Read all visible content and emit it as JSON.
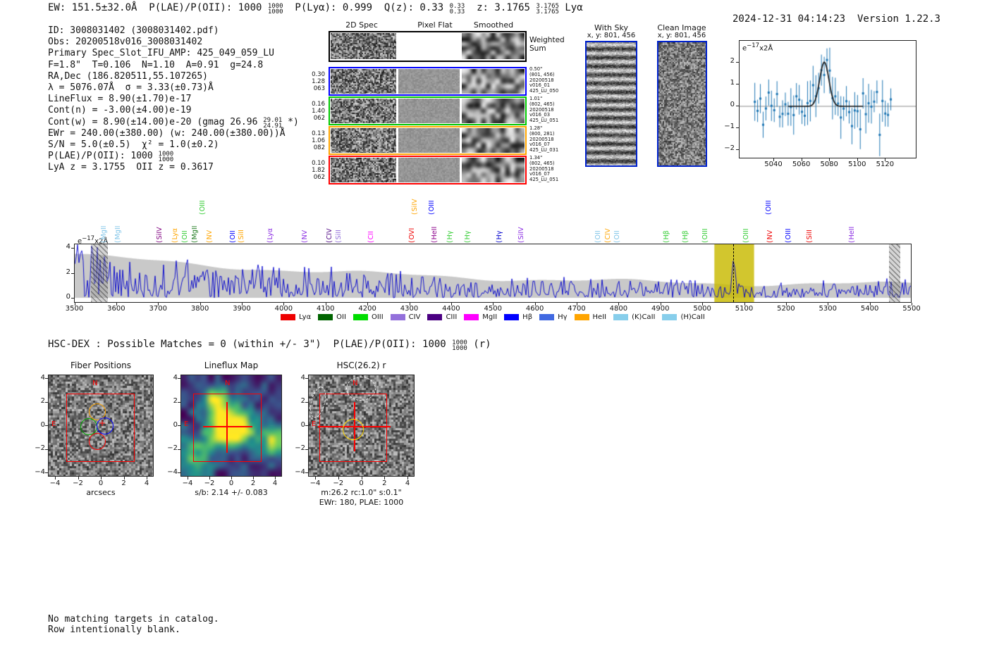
{
  "header": {
    "summary_segments": [
      {
        "t": "EW: 151.5±32.0Å  P(LAE)/P(OII): 1000 "
      },
      {
        "f": [
          "1000",
          "1000"
        ]
      },
      {
        "t": "  P(Lyα): 0.999  Q(z): 0.33 "
      },
      {
        "f": [
          "0.33",
          "0.33"
        ]
      },
      {
        "t": "  z: 3.1765 "
      },
      {
        "f": [
          "3.1765",
          "3.1765"
        ]
      },
      {
        "t": " Lyα"
      }
    ],
    "timestamp": "2024-12-31 04:14:23",
    "version": "Version 1.22.3"
  },
  "info_block": {
    "lines": [
      [
        {
          "t": "ID: 3008031402 (3008031402.pdf)"
        }
      ],
      [
        {
          "t": "Obs: 20200518v016_3008031402"
        }
      ],
      [
        {
          "t": "Primary Spec_Slot_IFU_AMP: 425_049_059_LU"
        }
      ],
      [
        {
          "t": "F=1.8\"  T=0.106  N=1.10  A=0.91  g=24.8"
        }
      ],
      [
        {
          "t": "RA,Dec (186.820511,55.107265)"
        }
      ],
      [
        {
          "t": "λ = 5076.07Å  σ = 3.33(±0.73)Å"
        }
      ],
      [
        {
          "t": "LineFlux = 8.90(±1.70)e-17"
        }
      ],
      [
        {
          "t": "Cont(n) = -3.00(±4.00)e-19"
        }
      ],
      [
        {
          "t": "Cont(w) = 8.90(±14.00)e-20 (gmag 26.96 "
        },
        {
          "f": [
            "29.01",
            "24.91"
          ]
        },
        {
          "t": " *)"
        }
      ],
      [
        {
          "t": "EWr = 240.00(±380.00) (w: 240.00(±380.00))Å"
        }
      ],
      [
        {
          "t": "S/N = 5.0(±0.5)  χ² = 1.0(±0.2)"
        }
      ],
      [
        {
          "t": "P(LAE)/P(OII): 1000 "
        },
        {
          "f": [
            "1000",
            "1000"
          ]
        }
      ],
      [
        {
          "t": "LyA z = 3.1755  OII z = 0.3617"
        }
      ]
    ]
  },
  "spec2d": {
    "col_headers": [
      "2D Spec",
      "Pixel Flat",
      "Smoothed"
    ],
    "rows": [
      {
        "border": "#000000",
        "left": [],
        "right": [
          "Weighted",
          "Sum"
        ],
        "flat": false
      },
      {
        "border": "#0000ff",
        "left": [
          "0.30",
          "1.28",
          "063"
        ],
        "right": [
          "0.50\"",
          "(801, 456)",
          "20200518",
          "v016_01",
          "425_LU_050"
        ],
        "flat": true
      },
      {
        "border": "#00c800",
        "left": [
          "0.16",
          "1.40",
          "062"
        ],
        "right": [
          "1.01\"",
          "(802, 465)",
          "20200518",
          "v016_03",
          "425_LU_051"
        ],
        "flat": true
      },
      {
        "border": "#ffa500",
        "left": [
          "0.13",
          "1.06",
          "082"
        ],
        "right": [
          "1.28\"",
          "(800, 281)",
          "20200518",
          "v016_07",
          "425_LU_031"
        ],
        "flat": true
      },
      {
        "border": "#ff0000",
        "left": [
          "0.10",
          "1.82",
          "062"
        ],
        "right": [
          "1.34\"",
          "(802, 465)",
          "20200518",
          "v016_07",
          "425_LU_051"
        ],
        "flat": true
      }
    ]
  },
  "sky_panels": {
    "border": "#0022cc",
    "with_sky": {
      "title": "With Sky",
      "coords": "x, y: 801, 456"
    },
    "clean": {
      "title": "Clean Image",
      "coords": "x, y: 801, 456"
    }
  },
  "hsc_line_segments": [
    {
      "t": "HSC-DEX : Possible Matches = 0 (within +/- 3\")  P(LAE)/P(OII): 1000 "
    },
    {
      "f": [
        "1000",
        "1000"
      ]
    },
    {
      "t": " (r)"
    }
  ],
  "footer": {
    "lines": [
      "No matching targets in catalog.",
      "Row intentionally blank."
    ]
  },
  "chart_data": [
    {
      "id": "line_fit_plot",
      "type": "scatter",
      "ylabel_note_segments": [
        {
          "t": "e"
        },
        {
          "s": "−17"
        },
        {
          "t": "x2Å"
        }
      ],
      "x_ticks": [
        "5040",
        "5060",
        "5080",
        "5100",
        "5120"
      ],
      "y_ticks": [
        "2",
        "1",
        "0",
        "−1",
        "−2"
      ],
      "xlim": [
        5015,
        5142
      ],
      "ylim": [
        -2.4,
        2.7
      ],
      "gaussian_fit": {
        "center": 5076.07,
        "sigma": 3.33,
        "amplitude": 2.0
      },
      "marker_color": "#1f77b4",
      "fit_color": "#1a1a1a",
      "zero_line_color": "#888888"
    },
    {
      "id": "full_spectrum",
      "type": "line",
      "ylabel_note_segments": [
        {
          "t": "e"
        },
        {
          "s": "−17"
        },
        {
          "t": "x2Å"
        }
      ],
      "x_ticks": [
        "3500",
        "3600",
        "3700",
        "3800",
        "3900",
        "4000",
        "4100",
        "4200",
        "4300",
        "4400",
        "4500",
        "4600",
        "4700",
        "4800",
        "4900",
        "5000",
        "5100",
        "5200",
        "5300",
        "5400",
        "5500"
      ],
      "y_ticks": [
        "4",
        "2",
        "0"
      ],
      "xlim": [
        3500,
        5500
      ],
      "ylim": [
        -0.3,
        4.5
      ],
      "spectrum_color": "#0000cd",
      "noise_envelope_color": "#c9c9c9",
      "highlight_region": {
        "x0": 5030,
        "x1": 5125,
        "color": "#c8b900"
      },
      "dashed_line_x": 5076,
      "hatch_bands": [
        [
          3538,
          3580
        ],
        [
          5448,
          5474
        ]
      ],
      "emission_labels": [
        {
          "text": "MgII",
          "color": "#7fc4e8",
          "wl": 3588
        },
        {
          "text": "MgII",
          "color": "#7fc4e8",
          "wl": 3622
        },
        {
          "text": "SiIV",
          "color": "#800080",
          "wl": 3721
        },
        {
          "text": "Lyα",
          "color": "#ffa500",
          "wl": 3758
        },
        {
          "text": "OII",
          "color": "#33cc33",
          "wl": 3781
        },
        {
          "text": "MgII",
          "color": "#1e7a1e",
          "wl": 3806
        },
        {
          "text": "OIII",
          "color": "#33cc33",
          "wl": 3823,
          "tall": true
        },
        {
          "text": "NV",
          "color": "#ffa500",
          "wl": 3840
        },
        {
          "text": "OII",
          "color": "#0000ff",
          "wl": 3897
        },
        {
          "text": "SiII",
          "color": "#ffa500",
          "wl": 3916
        },
        {
          "text": "Lyα",
          "color": "#8a2be2",
          "wl": 3986
        },
        {
          "text": "NV",
          "color": "#8a2be2",
          "wl": 4069
        },
        {
          "text": "CIV",
          "color": "#4b0082",
          "wl": 4127
        },
        {
          "text": "SiII",
          "color": "#9370db",
          "wl": 4149
        },
        {
          "text": "CII",
          "color": "#ff00ff",
          "wl": 4227
        },
        {
          "text": "OVI",
          "color": "#ee0000",
          "wl": 4325
        },
        {
          "text": "SiIV",
          "color": "#ffa500",
          "wl": 4331,
          "tall": true
        },
        {
          "text": "OIII",
          "color": "#0000ff",
          "wl": 4371,
          "tall": true
        },
        {
          "text": "HeII",
          "color": "#8b008b",
          "wl": 4378
        },
        {
          "text": "Hγ",
          "color": "#33cc33",
          "wl": 4415
        },
        {
          "text": "Hγ",
          "color": "#33cc33",
          "wl": 4457
        },
        {
          "text": "Hγ",
          "color": "#0000cd",
          "wl": 4533
        },
        {
          "text": "SiIV",
          "color": "#8a2be2",
          "wl": 4586
        },
        {
          "text": "OII",
          "color": "#7fc4e8",
          "wl": 4770
        },
        {
          "text": "CIV",
          "color": "#ffa500",
          "wl": 4793
        },
        {
          "text": "OII",
          "color": "#7fc4e8",
          "wl": 4815
        },
        {
          "text": "Hβ",
          "color": "#33cc33",
          "wl": 4933
        },
        {
          "text": "Hβ",
          "color": "#33cc33",
          "wl": 4979
        },
        {
          "text": "OIII",
          "color": "#33cc33",
          "wl": 5026
        },
        {
          "text": "OIII",
          "color": "#33cc33",
          "wl": 5124
        },
        {
          "text": "OIII",
          "color": "#0000ff",
          "wl": 5178,
          "tall": true
        },
        {
          "text": "NV",
          "color": "#ee0000",
          "wl": 5181
        },
        {
          "text": "OIII",
          "color": "#0000ff",
          "wl": 5225
        },
        {
          "text": "SiII",
          "color": "#ee0000",
          "wl": 5276
        },
        {
          "text": "HeII",
          "color": "#8a2be2",
          "wl": 5377
        }
      ],
      "legend": [
        {
          "label": "Lyα",
          "color": "#ee0000"
        },
        {
          "label": "OII",
          "color": "#006400"
        },
        {
          "label": "OIII",
          "color": "#00dd00"
        },
        {
          "label": "CIV",
          "color": "#9370db"
        },
        {
          "label": "CIII",
          "color": "#4b0082"
        },
        {
          "label": "MgII",
          "color": "#ff00ff"
        },
        {
          "label": "Hβ",
          "color": "#0000ff"
        },
        {
          "label": "Hγ",
          "color": "#4169e1"
        },
        {
          "label": "HeII",
          "color": "#ffa500"
        },
        {
          "label": "(K)CaII",
          "color": "#87ceeb"
        },
        {
          "label": "(H)CaII",
          "color": "#87ceeb"
        }
      ]
    },
    {
      "id": "fiber_positions",
      "type": "image",
      "title": "Fiber Positions",
      "xlabel": "arcsecs",
      "x_ticks": [
        "−4",
        "−2",
        "0",
        "2",
        "4"
      ],
      "y_ticks": [
        "4",
        "2",
        "0",
        "−2",
        "−4"
      ],
      "compass": {
        "n": "N",
        "e": "E"
      },
      "box_color": "#ff0000",
      "fiber_circle_colors": [
        "#ffa500",
        "#00aa00",
        "#0000ff",
        "#ff0000"
      ]
    },
    {
      "id": "lineflux_map",
      "type": "heatmap",
      "title": "Lineflux Map",
      "xlabel": "s/b: 2.14 +/- 0.083",
      "x_ticks": [
        "−4",
        "−2",
        "0",
        "2",
        "4"
      ],
      "y_ticks": [
        "4",
        "2",
        "0",
        "−2",
        "−4"
      ],
      "compass": {
        "n": "N",
        "e": "E"
      },
      "colormap": "viridis",
      "box_color": "#ff0000"
    },
    {
      "id": "hsc_cutout",
      "type": "image",
      "title": "HSC(26.2) r",
      "xlabel_lines": [
        "m:26.2 rc:1.0\"  s:0.1\"",
        "EWr: 180, PLAE: 1000"
      ],
      "x_ticks": [
        "−4",
        "−2",
        "0",
        "2",
        "4"
      ],
      "y_ticks": [
        "4",
        "2",
        "0",
        "−2",
        "−4"
      ],
      "compass": {
        "n": "N",
        "e": "E"
      },
      "box_color": "#ff0000",
      "aperture_color": "#ffd700"
    }
  ]
}
